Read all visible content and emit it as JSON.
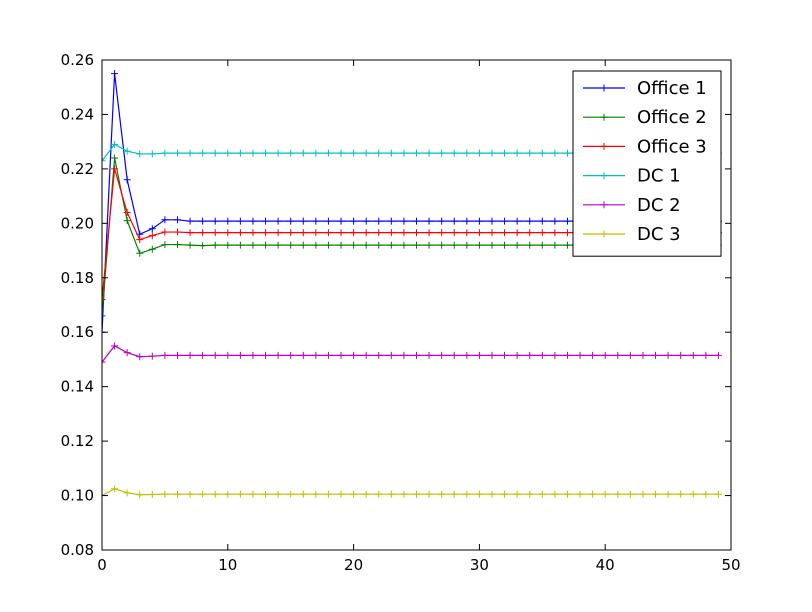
{
  "chart_data": {
    "type": "line",
    "title": "",
    "xlabel": "",
    "ylabel": "",
    "xlim": [
      0,
      50
    ],
    "ylim": [
      0.08,
      0.26
    ],
    "xticks": [
      0,
      10,
      20,
      30,
      40,
      50
    ],
    "xtick_labels": [
      "0",
      "10",
      "20",
      "30",
      "40",
      "50"
    ],
    "yticks": [
      0.08,
      0.1,
      0.12,
      0.14,
      0.16,
      0.18,
      0.2,
      0.22,
      0.24,
      0.26
    ],
    "ytick_labels": [
      "0.08",
      "0.10",
      "0.12",
      "0.14",
      "0.16",
      "0.18",
      "0.20",
      "0.22",
      "0.24",
      "0.26"
    ],
    "grid": false,
    "legend_position": "top-right",
    "marker": "plus",
    "series": [
      {
        "name": "Office 1",
        "color": "#0000ff",
        "start": [
          0.16,
          0.255,
          0.216,
          0.196,
          0.198,
          0.2013,
          0.2013,
          0.2008
        ],
        "steady": 0.2008
      },
      {
        "name": "Office 2",
        "color": "#008000",
        "start": [
          0.166,
          0.224,
          0.201,
          0.189,
          0.1905,
          0.1922,
          0.1922,
          0.192,
          0.1918
        ],
        "steady": 0.192
      },
      {
        "name": "Office 3",
        "color": "#ff0000",
        "start": [
          0.172,
          0.22,
          0.204,
          0.194,
          0.1955,
          0.1968,
          0.1968,
          0.1966
        ],
        "steady": 0.1966
      },
      {
        "name": "DC 1",
        "color": "#00bfbf",
        "start": [
          0.223,
          0.229,
          0.2265,
          0.2255,
          0.2255,
          0.2258
        ],
        "steady": 0.2258
      },
      {
        "name": "DC 2",
        "color": "#bf00bf",
        "start": [
          0.149,
          0.155,
          0.1525,
          0.151,
          0.1512,
          0.1515
        ],
        "steady": 0.1515
      },
      {
        "name": "DC 3",
        "color": "#bfbf00",
        "start": [
          0.1,
          0.1025,
          0.101,
          0.1003,
          0.1004,
          0.1005
        ],
        "steady": 0.1005
      }
    ],
    "x_points": 50
  }
}
